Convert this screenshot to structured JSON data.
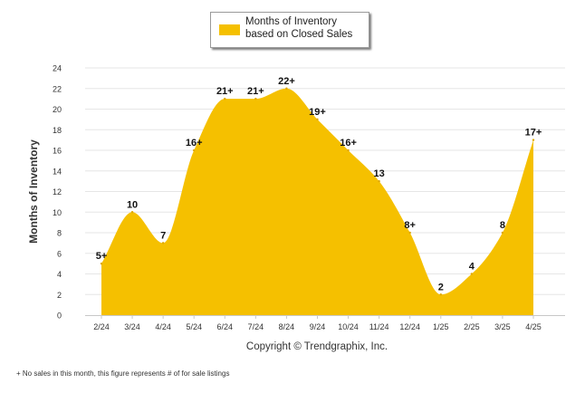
{
  "chart_data": {
    "type": "area",
    "ylabel": "Months of Inventory",
    "xlabel": "",
    "ylim": [
      0,
      24
    ],
    "yticks": [
      0,
      2,
      4,
      6,
      8,
      10,
      12,
      14,
      16,
      18,
      20,
      22,
      24
    ],
    "categories": [
      "2/24",
      "3/24",
      "4/24",
      "5/24",
      "6/24",
      "7/24",
      "8/24",
      "9/24",
      "10/24",
      "11/24",
      "12/24",
      "1/25",
      "2/25",
      "3/25",
      "4/25"
    ],
    "series": [
      {
        "name": "Months of Inventory based on Closed Sales",
        "values": [
          5,
          10,
          7,
          16,
          21,
          21,
          22,
          19,
          16,
          13,
          8,
          2,
          4,
          8,
          17
        ],
        "labels": [
          "5+",
          "10",
          "7",
          "16+",
          "21+",
          "21+",
          "22+",
          "19+",
          "16+",
          "13",
          "8+",
          "2",
          "4",
          "8",
          "17+"
        ],
        "color": "#f5c000"
      }
    ],
    "grid": "horizontal",
    "legend": "top-center"
  },
  "legend_label": "Months of Inventory based on Closed Sales",
  "copyright": "Copyright © Trendgraphix, Inc.",
  "footnote": "+  No sales in this month, this figure represents # of for sale listings"
}
